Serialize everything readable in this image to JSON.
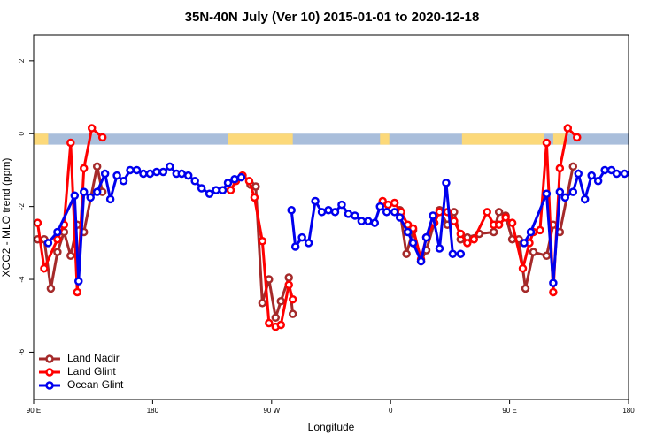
{
  "chart_data": {
    "type": "line",
    "title": "35N-40N July (Ver 10)   2015-01-01 to 2020-12-18",
    "xlabel": "Longitude",
    "ylabel": "XCO2 - MLO trend (ppm)",
    "xlim": [
      90,
      540
    ],
    "ylim": [
      -7.3,
      2.7
    ],
    "xticks": [
      {
        "value": 90,
        "label": "90 E"
      },
      180,
      {
        "value": 270,
        "label": "90 W"
      },
      {
        "value": 360,
        "label": "0"
      },
      {
        "value": 450,
        "label": "90 E"
      },
      {
        "value": 540,
        "label": "180"
      }
    ],
    "yticks": [
      -6,
      -4,
      -2,
      0,
      2
    ],
    "legend": "bottom-left",
    "mask": {
      "ylim": [
        -0.3,
        0
      ],
      "ocean_color": "#a9bedb",
      "land_color": "#fcd97a",
      "land_spans": [
        [
          90,
          101
        ],
        [
          237,
          286
        ],
        [
          352,
          359
        ],
        [
          414,
          476
        ],
        [
          483,
          493
        ]
      ]
    },
    "series": [
      {
        "name": "Land Nadir",
        "color": "#a52a2a",
        "x": [
          93,
          98,
          103,
          108,
          113,
          118,
          123,
          128,
          138,
          142,
          null,
          254,
          258,
          263,
          268,
          273,
          277,
          283,
          286,
          null,
          367,
          372,
          377,
          383,
          387,
          393,
          397,
          403,
          408,
          413,
          418,
          427,
          438,
          442,
          447,
          452,
          457,
          462,
          468,
          478,
          483,
          488,
          498
        ],
        "values": [
          -2.9,
          -2.9,
          -4.25,
          -3.25,
          -2.7,
          -3.35,
          -2.5,
          -2.7,
          -0.9,
          -1.6,
          null,
          -1.4,
          -1.45,
          -4.65,
          -4.0,
          -5.05,
          -4.6,
          -3.95,
          -4.95,
          null,
          -2.1,
          -3.3,
          -2.65,
          -3.5,
          -3.2,
          -2.45,
          -2.1,
          -2.5,
          -2.15,
          -2.9,
          -2.85,
          -2.75,
          -2.7,
          -2.15,
          -2.25,
          -2.9,
          -2.9,
          -4.25,
          -3.25,
          -3.35,
          -2.5,
          -2.7,
          -0.9
        ]
      },
      {
        "name": "Land Glint",
        "color": "#ff0000",
        "x": [
          93,
          98,
          108,
          113,
          118,
          123,
          128,
          134,
          142,
          null,
          239,
          243,
          248,
          253,
          257,
          263,
          268,
          273,
          277,
          283,
          286,
          null,
          354,
          358,
          363,
          368,
          373,
          377,
          383,
          387,
          393,
          397,
          403,
          408,
          413,
          418,
          423,
          433,
          438,
          442,
          447,
          452,
          460,
          465,
          468,
          473,
          478,
          483,
          488,
          494,
          501
        ],
        "values": [
          -2.45,
          -3.7,
          -2.9,
          -2.5,
          -0.25,
          -4.35,
          -0.95,
          0.15,
          -0.1,
          null,
          -1.55,
          -1.3,
          -1.15,
          -1.3,
          -1.75,
          -2.95,
          -5.2,
          -5.3,
          -5.25,
          -4.15,
          -4.55,
          null,
          -1.85,
          -1.95,
          -1.9,
          -2.15,
          -2.5,
          -2.6,
          -3.45,
          -2.85,
          -2.45,
          -2.15,
          -2.15,
          -2.4,
          -2.75,
          -3.0,
          -2.9,
          -2.15,
          -2.5,
          -2.5,
          -2.3,
          -2.45,
          -3.7,
          -3.0,
          -2.7,
          -2.65,
          -0.25,
          -4.35,
          -0.95,
          0.15,
          -0.1
        ]
      },
      {
        "name": "Ocean Glint",
        "color": "#0000ee",
        "x": [
          101,
          108,
          121,
          124,
          128,
          133,
          138,
          144,
          148,
          153,
          158,
          163,
          168,
          173,
          178,
          183,
          188,
          193,
          198,
          202,
          207,
          212,
          217,
          223,
          228,
          233,
          237,
          242,
          247,
          null,
          285,
          288,
          293,
          298,
          303,
          308,
          313,
          318,
          323,
          328,
          333,
          338,
          343,
          348,
          352,
          357,
          363,
          367,
          373,
          377,
          383,
          387,
          392,
          397,
          402,
          407,
          413,
          null,
          461,
          466,
          478,
          483,
          488,
          492,
          498,
          502,
          507,
          512,
          517,
          522,
          527,
          531,
          537
        ],
        "values": [
          -3.0,
          -2.7,
          -1.7,
          -4.05,
          -1.6,
          -1.75,
          -1.6,
          -1.1,
          -1.8,
          -1.15,
          -1.3,
          -1.0,
          -1.0,
          -1.1,
          -1.1,
          -1.05,
          -1.05,
          -0.9,
          -1.1,
          -1.1,
          -1.15,
          -1.3,
          -1.5,
          -1.65,
          -1.55,
          -1.55,
          -1.35,
          -1.25,
          -1.2,
          null,
          -2.1,
          -3.1,
          -2.85,
          -3.0,
          -1.85,
          -2.15,
          -2.1,
          -2.15,
          -1.95,
          -2.2,
          -2.25,
          -2.4,
          -2.4,
          -2.45,
          -2.0,
          -2.15,
          -2.15,
          -2.3,
          -2.7,
          -3.0,
          -3.5,
          -2.85,
          -2.25,
          -3.15,
          -1.35,
          -3.3,
          -3.3,
          null,
          -3.0,
          -2.7,
          -1.65,
          -4.1,
          -1.6,
          -1.75,
          -1.6,
          -1.1,
          -1.8,
          -1.15,
          -1.3,
          -1.0,
          -1.0,
          -1.1,
          -1.1
        ]
      }
    ]
  }
}
